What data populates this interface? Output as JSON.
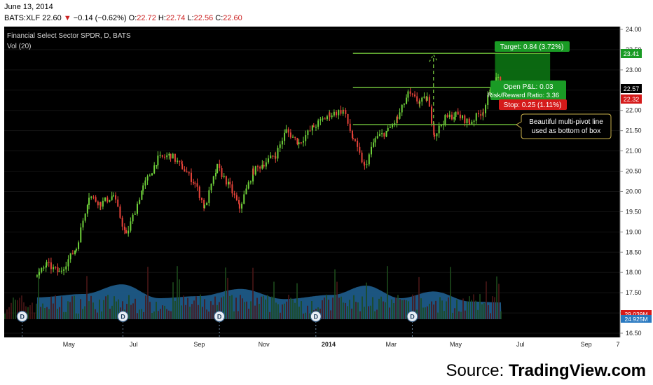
{
  "header": {
    "date": "June 13, 2014",
    "symbol": "BATS:XLF",
    "last": "22.60",
    "change": "−0.14 (−0.62%)",
    "open_label": "O:",
    "open": "22.72",
    "high_label": "H:",
    "high": "22.74",
    "low_label": "L:",
    "low": "22.56",
    "close_label": "C:",
    "close": "22.60"
  },
  "chart_header": {
    "title": "Financial Select Sector SPDR, D, BATS",
    "volume_label": "Vol (20)"
  },
  "annotations": {
    "target": "Target: 0.84 (3.72%)",
    "open_pl": "Open P&L: 0.03",
    "risk_reward": "Risk/Reward Ratio: 3.36",
    "stop": "Stop: 0.25 (1.11%)",
    "callout_line1": "Beautiful multi-pivot line",
    "callout_line2": "used as bottom of box",
    "dividend_marker": "D"
  },
  "price_badges": {
    "target": "23.41",
    "last": "22.57",
    "stop": "22.32",
    "volume_red": "29.039M",
    "volume_blue": "24.925M"
  },
  "source": {
    "prefix": "Source: ",
    "brand": "TradingView.com"
  },
  "colors": {
    "background": "#000000",
    "up": "#6fd13a",
    "down": "#e8433a",
    "target_zone": "#0c6e12",
    "stop_zone": "#5a0f12",
    "volume_area": "#1f5e8e",
    "guide_lines": "#6fbf3a"
  },
  "chart_data": {
    "type": "candlestick",
    "title": "Financial Select Sector SPDR, D, BATS",
    "x_tick_labels": [
      "May",
      "Jul",
      "Sep",
      "Nov",
      "2014",
      "Mar",
      "May",
      "Jul",
      "Sep",
      "7"
    ],
    "y_tick_labels": [
      "24.00",
      "23.50",
      "23.00",
      "22.50",
      "22.00",
      "21.50",
      "21.00",
      "20.50",
      "20.00",
      "19.50",
      "19.00",
      "18.50",
      "18.00",
      "17.50",
      "17.00",
      "16.50"
    ],
    "ylim": [
      16.5,
      24.0
    ],
    "price_path": [
      [
        "2013-04-01",
        17.9
      ],
      [
        "2013-04-10",
        18.2
      ],
      [
        "2013-04-22",
        18.0
      ],
      [
        "2013-05-08",
        18.6
      ],
      [
        "2013-05-20",
        19.9
      ],
      [
        "2013-05-31",
        19.7
      ],
      [
        "2013-06-12",
        19.9
      ],
      [
        "2013-06-24",
        18.9
      ],
      [
        "2013-07-10",
        20.1
      ],
      [
        "2013-07-24",
        20.8
      ],
      [
        "2013-08-05",
        20.9
      ],
      [
        "2013-08-16",
        20.6
      ],
      [
        "2013-08-28",
        20.2
      ],
      [
        "2013-09-06",
        19.6
      ],
      [
        "2013-09-18",
        20.6
      ],
      [
        "2013-09-30",
        20.1
      ],
      [
        "2013-10-09",
        19.6
      ],
      [
        "2013-10-22",
        20.5
      ],
      [
        "2013-11-01",
        20.7
      ],
      [
        "2013-11-12",
        20.9
      ],
      [
        "2013-11-22",
        21.5
      ],
      [
        "2013-12-04",
        21.2
      ],
      [
        "2013-12-18",
        21.6
      ],
      [
        "2014-01-02",
        21.9
      ],
      [
        "2014-01-15",
        22.0
      ],
      [
        "2014-01-24",
        21.3
      ],
      [
        "2014-02-04",
        20.6
      ],
      [
        "2014-02-14",
        21.3
      ],
      [
        "2014-02-26",
        21.5
      ],
      [
        "2014-03-07",
        21.8
      ],
      [
        "2014-03-17",
        22.4
      ],
      [
        "2014-03-28",
        22.2
      ],
      [
        "2014-04-04",
        22.3
      ],
      [
        "2014-04-11",
        21.4
      ],
      [
        "2014-04-21",
        21.8
      ],
      [
        "2014-05-01",
        21.9
      ],
      [
        "2014-05-14",
        21.7
      ],
      [
        "2014-05-27",
        22.0
      ],
      [
        "2014-06-06",
        22.7
      ],
      [
        "2014-06-10",
        22.8
      ],
      [
        "2014-06-13",
        22.6
      ]
    ],
    "volume_path": [
      [
        "2013-04-01",
        0.52
      ],
      [
        "2013-05-15",
        0.6
      ],
      [
        "2013-06-20",
        0.83
      ],
      [
        "2013-07-25",
        0.5
      ],
      [
        "2013-09-01",
        0.55
      ],
      [
        "2013-10-10",
        0.72
      ],
      [
        "2013-11-20",
        0.48
      ],
      [
        "2014-01-05",
        0.58
      ],
      [
        "2014-02-05",
        0.8
      ],
      [
        "2014-03-10",
        0.5
      ],
      [
        "2014-04-10",
        0.66
      ],
      [
        "2014-05-15",
        0.42
      ],
      [
        "2014-06-13",
        0.4
      ]
    ],
    "dividend_dates": [
      "2013-03-18",
      "2013-06-21",
      "2013-09-20",
      "2013-12-20",
      "2014-03-21"
    ],
    "levels": {
      "target": 23.41,
      "entry": 22.57,
      "multi_pivot_bottom": 21.65,
      "stop": 22.32
    },
    "forecast_peak": 23.41
  }
}
